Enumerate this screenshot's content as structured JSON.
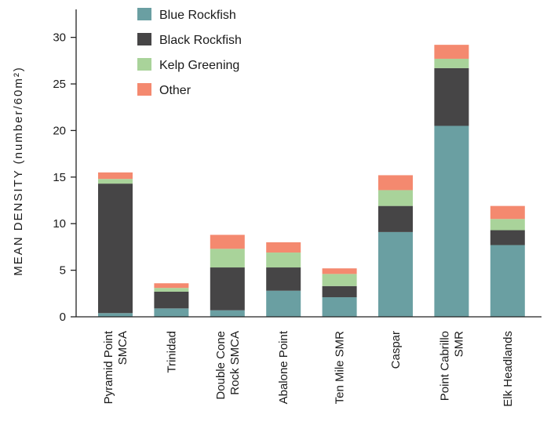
{
  "chart_data": {
    "type": "bar",
    "stacked": true,
    "categories": [
      [
        "Pyramid Point",
        "SMCA"
      ],
      [
        "Trinidad"
      ],
      [
        "Double Cone",
        "Rock SMCA"
      ],
      [
        "Abalone Point"
      ],
      [
        "Ten Mile SMR"
      ],
      [
        "Caspar"
      ],
      [
        "Point Cabrillo",
        "SMR"
      ],
      [
        "Elk Headlands"
      ]
    ],
    "series": [
      {
        "name": "Blue Rockfish",
        "color": "#6a9fa2",
        "values": [
          0.4,
          0.9,
          0.7,
          2.8,
          2.1,
          9.1,
          20.5,
          7.7
        ]
      },
      {
        "name": "Black Rockfish",
        "color": "#464546",
        "values": [
          13.9,
          1.8,
          4.6,
          2.5,
          1.2,
          2.8,
          6.2,
          1.6
        ]
      },
      {
        "name": "Kelp Greening",
        "color": "#a9d39a",
        "values": [
          0.5,
          0.4,
          2.0,
          1.6,
          1.3,
          1.7,
          1.0,
          1.2
        ]
      },
      {
        "name": "Other",
        "color": "#f4896f",
        "values": [
          0.7,
          0.5,
          1.5,
          1.1,
          0.6,
          1.6,
          1.5,
          1.4
        ]
      }
    ],
    "ylabel": "MEAN DENSITY (number/60m²)",
    "ylim": [
      0,
      33
    ],
    "yticks": [
      0,
      5,
      10,
      15,
      20,
      25,
      30
    ],
    "grid": false,
    "legend_position": "top-left"
  }
}
